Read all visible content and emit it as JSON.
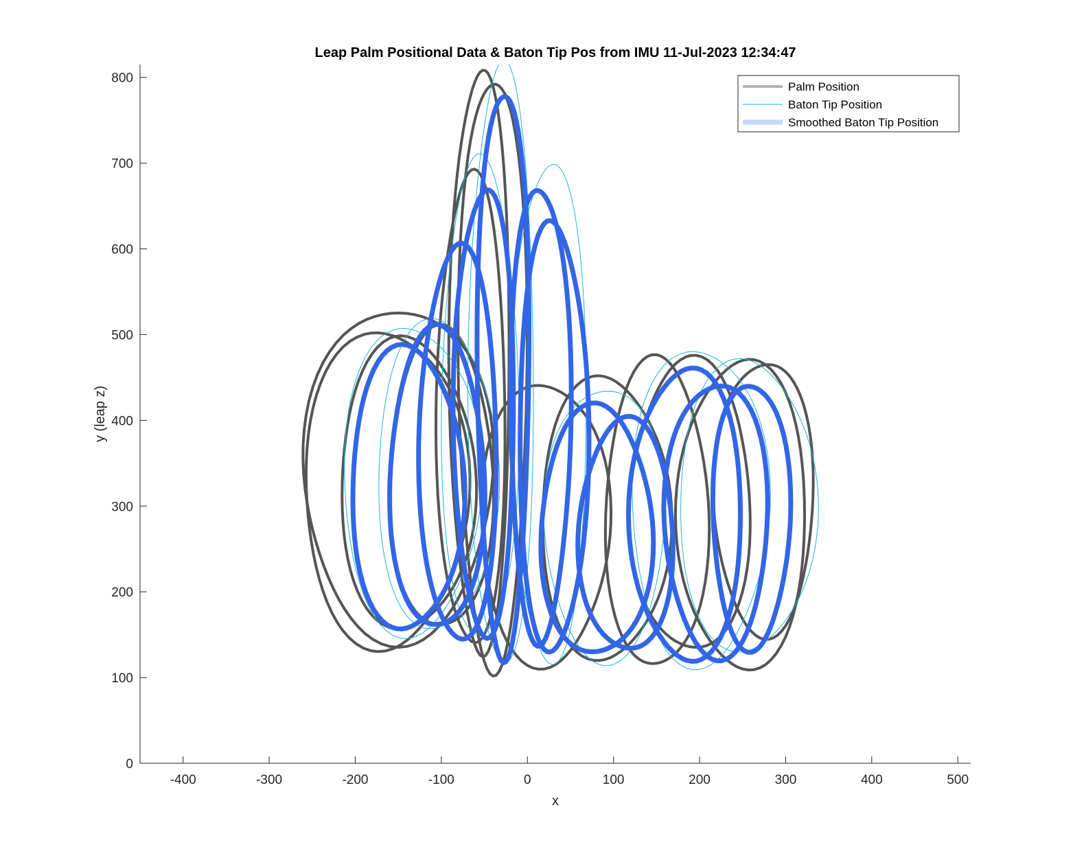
{
  "chart_data": {
    "type": "line",
    "title": "Leap Palm Positional Data & Baton Tip Pos from IMU 11-Jul-2023 12:34:47",
    "xlabel": "x",
    "ylabel": "y (leap z)",
    "xlim": [
      -450,
      515
    ],
    "ylim": [
      0,
      815
    ],
    "xticks": [
      -400,
      -300,
      -200,
      -100,
      0,
      100,
      200,
      300,
      400,
      500
    ],
    "yticks": [
      0,
      100,
      200,
      300,
      400,
      500,
      600,
      700,
      800
    ],
    "xtick_labels": [
      "-400",
      "-300",
      "-200",
      "-100",
      "0",
      "100",
      "200",
      "300",
      "400",
      "500"
    ],
    "ytick_labels": [
      "0",
      "100",
      "200",
      "300",
      "400",
      "500",
      "600",
      "700",
      "800"
    ],
    "grid": false,
    "legend_position": "top-right",
    "series": [
      {
        "name": "Palm Position",
        "color": "#555555",
        "legend_color": "#b3b3b3",
        "loops": [
          {
            "cx": -150,
            "cy": 338,
            "rx": 110,
            "ry": 195
          },
          {
            "cx": -165,
            "cy": 320,
            "rx": 95,
            "ry": 185
          },
          {
            "cx": -140,
            "cy": 325,
            "rx": 78,
            "ry": 170
          },
          {
            "cx": -100,
            "cy": 330,
            "rx": 60,
            "ry": 175
          },
          {
            "cx": -65,
            "cy": 410,
            "rx": 40,
            "ry": 275
          },
          {
            "cx": -55,
            "cy": 470,
            "rx": 35,
            "ry": 340
          },
          {
            "cx": -40,
            "cy": 460,
            "rx": 40,
            "ry": 345
          },
          {
            "cx": 20,
            "cy": 280,
            "rx": 75,
            "ry": 165
          },
          {
            "cx": 90,
            "cy": 285,
            "rx": 75,
            "ry": 165
          },
          {
            "cx": 150,
            "cy": 290,
            "rx": 60,
            "ry": 180
          },
          {
            "cx": 190,
            "cy": 300,
            "rx": 70,
            "ry": 170
          },
          {
            "cx": 250,
            "cy": 290,
            "rx": 75,
            "ry": 180
          },
          {
            "cx": 275,
            "cy": 310,
            "rx": 58,
            "ry": 160
          }
        ]
      },
      {
        "name": "Baton Tip Position",
        "color": "#1fb3d6",
        "legend_color": "#1fb3d6",
        "loops": [
          {
            "cx": -135,
            "cy": 330,
            "rx": 80,
            "ry": 180
          },
          {
            "cx": -105,
            "cy": 335,
            "rx": 70,
            "ry": 180
          },
          {
            "cx": -55,
            "cy": 420,
            "rx": 45,
            "ry": 280
          },
          {
            "cx": -30,
            "cy": 460,
            "rx": 38,
            "ry": 350
          },
          {
            "cx": 25,
            "cy": 410,
            "rx": 45,
            "ry": 290
          },
          {
            "cx": 90,
            "cy": 280,
            "rx": 70,
            "ry": 160
          },
          {
            "cx": 200,
            "cy": 300,
            "rx": 80,
            "ry": 185
          },
          {
            "cx": 255,
            "cy": 300,
            "rx": 80,
            "ry": 170
          }
        ]
      },
      {
        "name": "Smoothed Baton Tip Position",
        "color": "#3366e6",
        "legend_color": "#c6d5f5",
        "loops": [
          {
            "cx": -140,
            "cy": 320,
            "rx": 65,
            "ry": 165
          },
          {
            "cx": -105,
            "cy": 330,
            "rx": 55,
            "ry": 175
          },
          {
            "cx": -80,
            "cy": 370,
            "rx": 45,
            "ry": 230
          },
          {
            "cx": -50,
            "cy": 410,
            "rx": 35,
            "ry": 260
          },
          {
            "cx": -28,
            "cy": 460,
            "rx": 30,
            "ry": 330
          },
          {
            "cx": 15,
            "cy": 410,
            "rx": 35,
            "ry": 265
          },
          {
            "cx": 30,
            "cy": 380,
            "rx": 40,
            "ry": 250
          },
          {
            "cx": 80,
            "cy": 270,
            "rx": 65,
            "ry": 145
          },
          {
            "cx": 115,
            "cy": 265,
            "rx": 55,
            "ry": 135
          },
          {
            "cx": 185,
            "cy": 290,
            "rx": 65,
            "ry": 170
          },
          {
            "cx": 220,
            "cy": 285,
            "rx": 60,
            "ry": 160
          },
          {
            "cx": 260,
            "cy": 290,
            "rx": 45,
            "ry": 155
          }
        ]
      }
    ]
  }
}
